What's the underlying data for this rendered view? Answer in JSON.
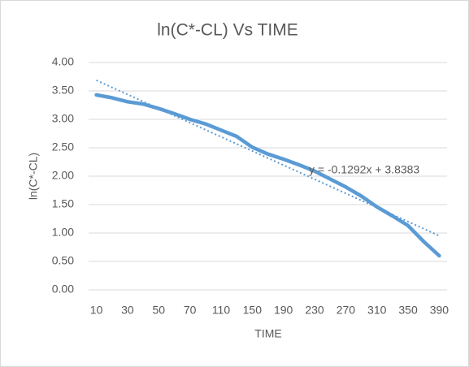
{
  "chart_data": {
    "type": "line",
    "title": "ln(C*-CL) Vs TIME",
    "x_label": "TIME",
    "y_label": "ln(C*-CL)",
    "categories": [
      "10",
      null,
      "30",
      null,
      "50",
      null,
      "70",
      null,
      "110",
      null,
      "150",
      null,
      "190",
      null,
      "230",
      null,
      "270",
      null,
      "310",
      null,
      "350",
      null,
      "390"
    ],
    "series": [
      {
        "name": "ln(C*-CL)",
        "color": "#5b9bd5",
        "values": [
          3.43,
          3.38,
          3.31,
          3.27,
          3.19,
          3.1,
          3.0,
          2.92,
          2.81,
          2.7,
          2.51,
          2.39,
          2.3,
          2.2,
          2.09,
          1.95,
          1.81,
          1.65,
          1.46,
          1.3,
          1.13,
          0.85,
          0.6
        ]
      }
    ],
    "trendline": {
      "type": "linear",
      "color": "#5b9bd5",
      "label": "y = -0.1292x + 3.8383"
    },
    "ylim": [
      0,
      4
    ],
    "yticks": [
      {
        "value": 0,
        "label": "0.00"
      },
      {
        "value": 0.5,
        "label": "0.50"
      },
      {
        "value": 1,
        "label": "1.00"
      },
      {
        "value": 1.5,
        "label": "1.50"
      },
      {
        "value": 2,
        "label": "2.00"
      },
      {
        "value": 2.5,
        "label": "2.50"
      },
      {
        "value": 3,
        "label": "3.00"
      },
      {
        "value": 3.5,
        "label": "3.50"
      },
      {
        "value": 4,
        "label": "4.00"
      }
    ],
    "grid": true
  }
}
